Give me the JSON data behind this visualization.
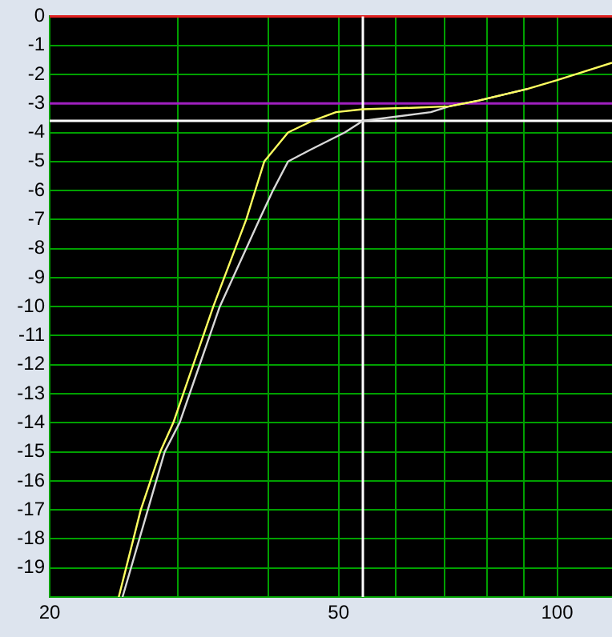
{
  "chart_data": {
    "type": "line",
    "log": "x",
    "grid": true,
    "legend": false,
    "marker": "none",
    "line_style": "solid",
    "xlim": [
      20,
      119
    ],
    "xticks": [
      20,
      {
        "value": 30,
        "label": null
      },
      {
        "value": 40,
        "label": null
      },
      50,
      {
        "value": 60,
        "label": null
      },
      {
        "value": 70,
        "label": null
      },
      {
        "value": 80,
        "label": null
      },
      {
        "value": 90,
        "label": null
      },
      100
    ],
    "ylim": [
      -20,
      0
    ],
    "yticks": [
      0,
      -1,
      -2,
      -3,
      -4,
      -5,
      -6,
      -7,
      -8,
      -9,
      -10,
      -11,
      -12,
      -13,
      -14,
      -15,
      -16,
      -17,
      -18,
      -19,
      {
        "value": -20,
        "label": null
      }
    ],
    "ref_lines": [
      {
        "axis": "y",
        "value": 0,
        "color": "#e02020"
      },
      {
        "axis": "y",
        "value": -3,
        "color": "#a020c0"
      },
      {
        "axis": "y",
        "value": -3.6,
        "color": "#ffffff"
      },
      {
        "axis": "x",
        "value": 54,
        "color": "#ffffff"
      }
    ],
    "series": [
      {
        "color": "#ffff60",
        "x": [
          24.9,
          26.7,
          28.4,
          29.6,
          33.6,
          37.3,
          39.5,
          42.6,
          46,
          49.6,
          54,
          63,
          71,
          78,
          91,
          100,
          119
        ],
        "values": [
          -20,
          -17,
          -15,
          -14,
          -10,
          -7,
          -5,
          -4,
          -3.6,
          -3.3,
          -3.2,
          -3.15,
          -3.1,
          -2.9,
          -2.5,
          -2.2,
          -1.6
        ]
      },
      {
        "color": "#d8d8d8",
        "x": [
          25.2,
          28.8,
          30.2,
          34.3,
          38.9,
          40.6,
          42.6,
          45.7,
          51,
          54,
          67,
          71,
          78,
          91
        ],
        "values": [
          -20,
          -15,
          -14,
          -10,
          -7,
          -6,
          -5,
          -4.6,
          -4,
          -3.6,
          -3.3,
          -3.1,
          -2.9,
          -2.5
        ]
      }
    ]
  }
}
